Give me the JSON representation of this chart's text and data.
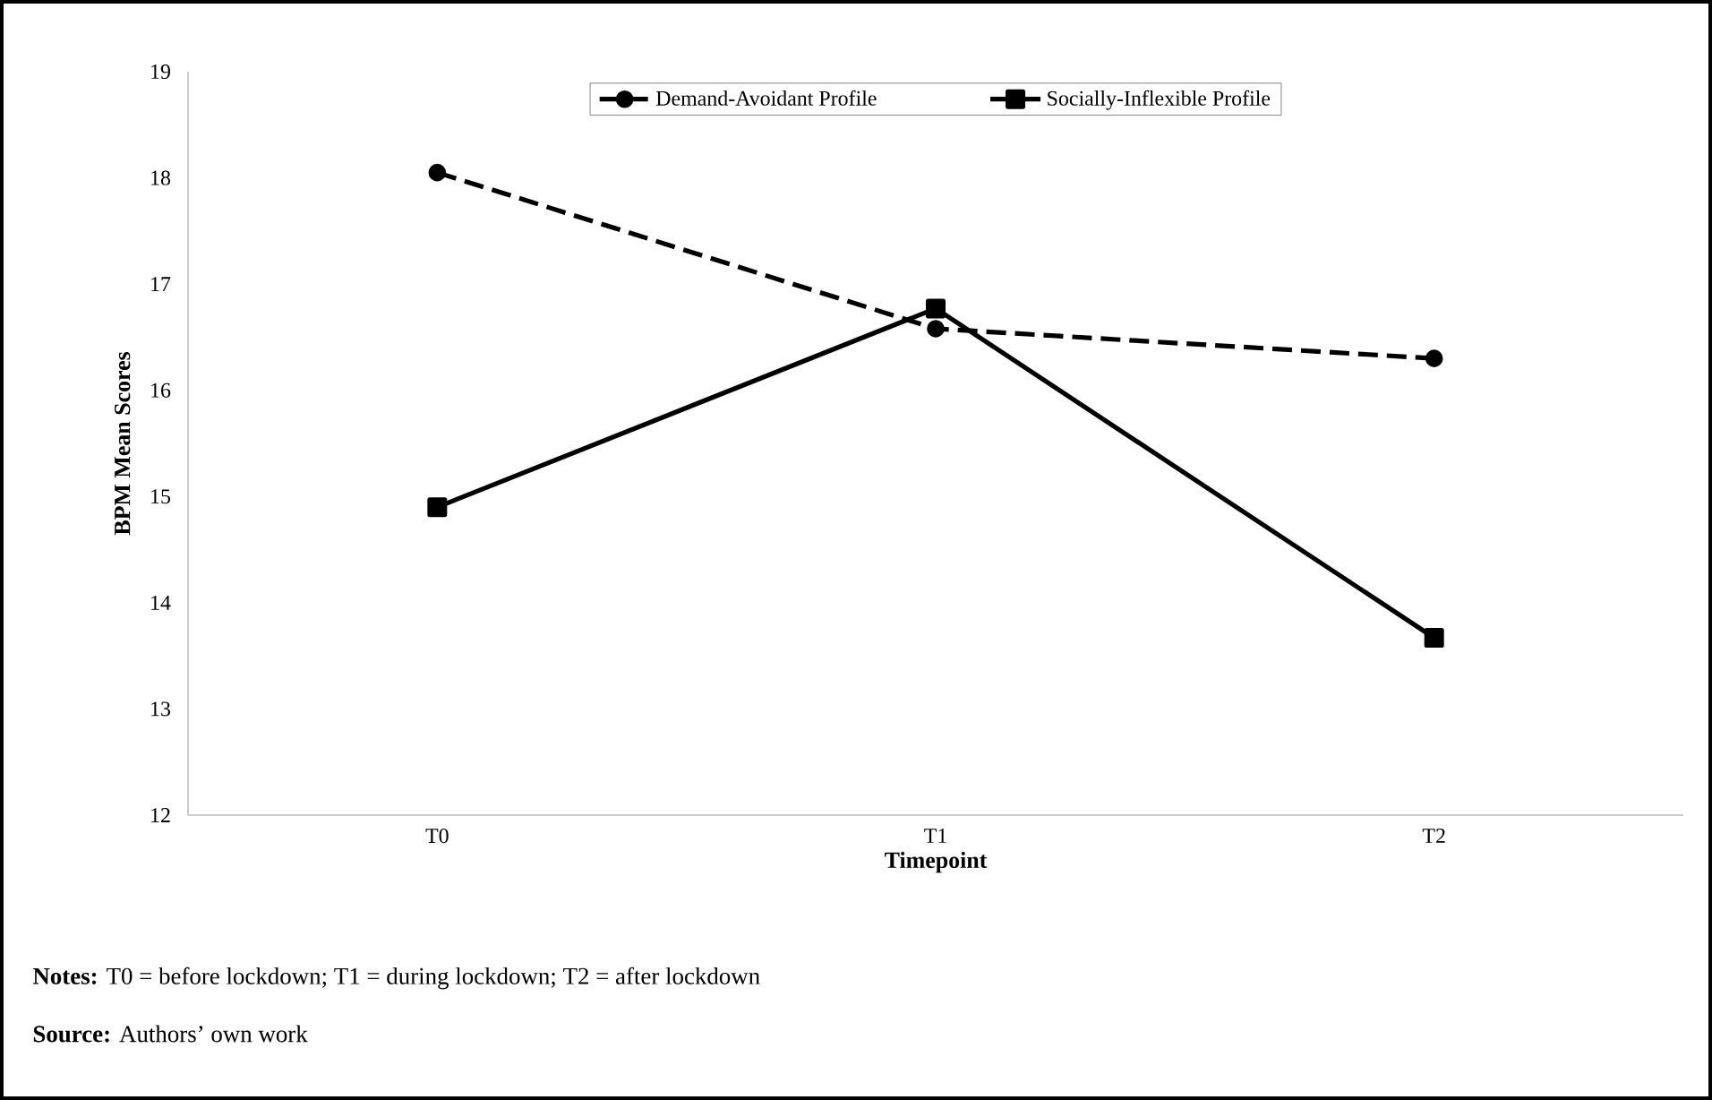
{
  "chart_data": {
    "type": "line",
    "xlabel": "Timepoint",
    "ylabel": "BPM Mean Scores",
    "categories": [
      "T0",
      "T1",
      "T2"
    ],
    "series": [
      {
        "name": "Demand-Avoidant Profile",
        "color": "#000000",
        "values": [
          18.05,
          16.58,
          16.3
        ],
        "marker": "circle",
        "line_style": "dashed"
      },
      {
        "name": "Socially-Inflexible Profile",
        "color": "#000000",
        "values": [
          14.9,
          16.77,
          13.67
        ],
        "marker": "square",
        "line_style": "solid"
      }
    ],
    "ylim": [
      12,
      19
    ],
    "yticks": [
      12,
      13,
      14,
      15,
      16,
      17,
      18,
      19
    ],
    "legend": "top",
    "annotations": [
      "**Notes:** T0 = before lockdown; T1 = during lockdown; T2 = after lockdown",
      "**Source:** Authors’ own work"
    ]
  }
}
